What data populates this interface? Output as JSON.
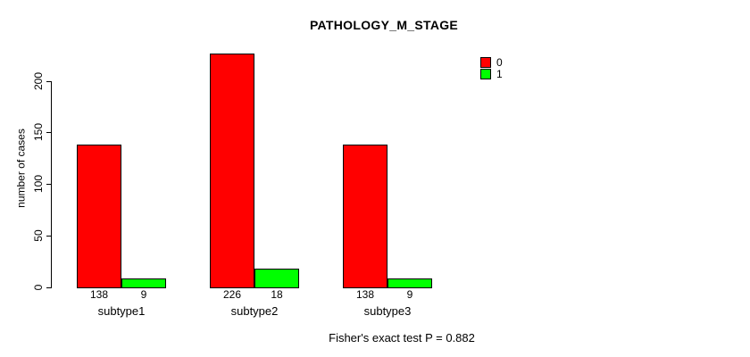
{
  "title": "PATHOLOGY_M_STAGE",
  "footer": {
    "note": "Fisher's exact test P = 0.882"
  },
  "colors": {
    "series0": "#ff0000",
    "series1": "#00ff00",
    "axis": "#000000",
    "background": "#ffffff"
  },
  "chart_data": {
    "type": "bar",
    "title": "PATHOLOGY_M_STAGE",
    "categories": [
      "subtype1",
      "subtype2",
      "subtype3"
    ],
    "series": [
      {
        "name": "0",
        "color": "#ff0000",
        "values": [
          138,
          226,
          138
        ]
      },
      {
        "name": "1",
        "color": "#00ff00",
        "values": [
          9,
          18,
          9
        ]
      }
    ],
    "xlabel": "",
    "ylabel": "number of cases",
    "yticks": [
      0,
      50,
      100,
      150,
      200
    ],
    "ylim": [
      0,
      230
    ],
    "grid": false,
    "legend_position": "top-right",
    "legend_entries": [
      "0",
      "1"
    ],
    "bar_value_labels": [
      [
        "138",
        "9"
      ],
      [
        "226",
        "18"
      ],
      [
        "138",
        "9"
      ]
    ],
    "annotation": "Fisher's exact test P = 0.882"
  }
}
